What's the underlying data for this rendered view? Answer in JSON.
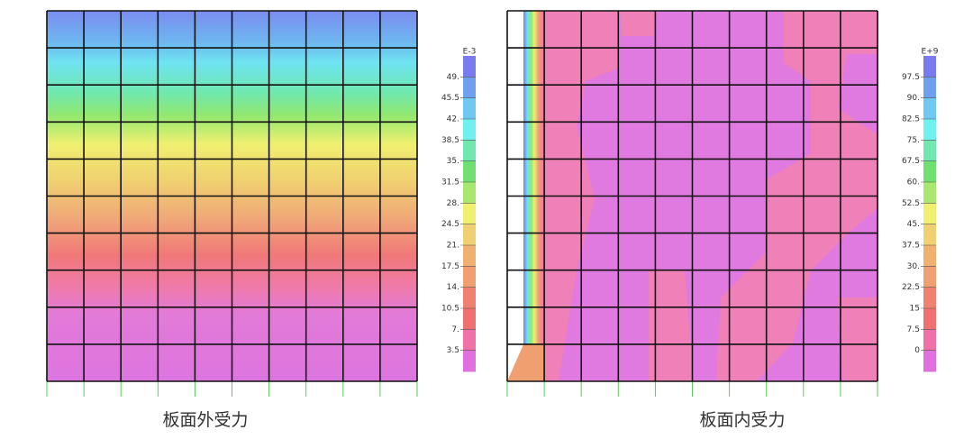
{
  "panels": [
    {
      "caption": "板面外受力",
      "legend": {
        "exponent": "E-3",
        "labels": [
          "49.",
          "45.5",
          "42.",
          "38.5",
          "35.",
          "31.5",
          "28.",
          "24.5",
          "21.",
          "17.5",
          "14.",
          "10.5",
          "7.",
          "3.5"
        ]
      }
    },
    {
      "caption": "板面内受力",
      "legend": {
        "exponent": "E+9",
        "labels": [
          "97.5",
          "90.",
          "82.5",
          "75.",
          "67.5",
          "60.",
          "52.5",
          "45.",
          "37.5",
          "30.",
          "22.5",
          "15",
          "7.5",
          "0"
        ]
      }
    }
  ]
}
